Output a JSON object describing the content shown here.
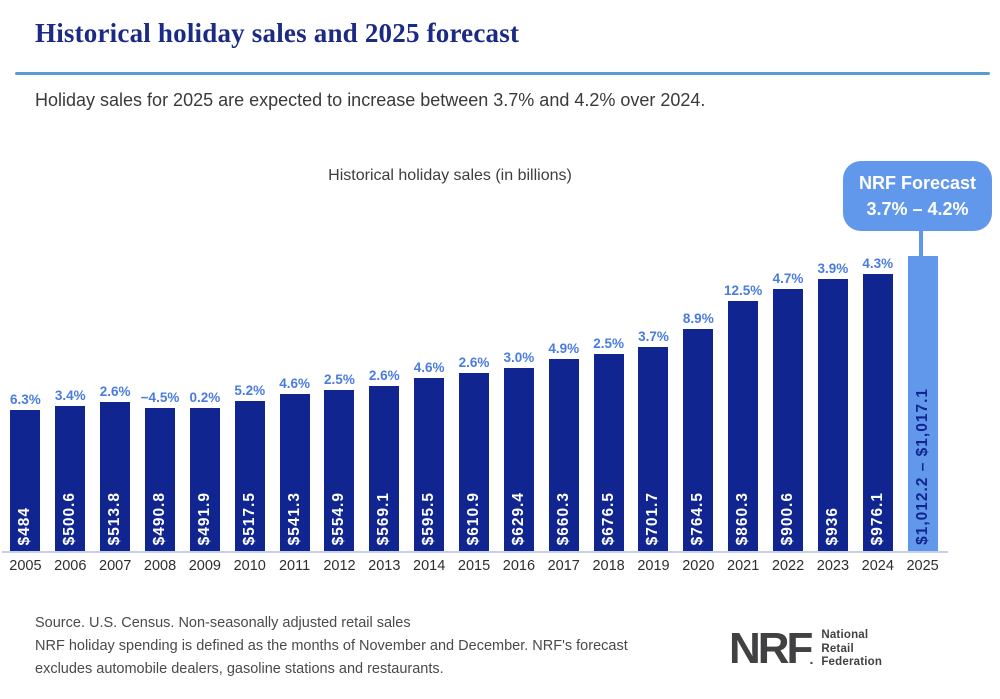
{
  "header": {
    "title": "Historical holiday sales and 2025 forecast",
    "subtitle": "Holiday sales for 2025 are expected to increase between 3.7% and 4.2% over 2024."
  },
  "chart": {
    "title": "Historical holiday sales (in billions)",
    "callout": {
      "line1": "NRF Forecast",
      "line2": "3.7% – 4.2%"
    }
  },
  "chart_data": {
    "type": "bar",
    "title": "Historical holiday sales (in billions)",
    "unit": "USD billions",
    "ylim": [
      0,
      1015
    ],
    "grid": false,
    "legend": "none",
    "categories": [
      "2005",
      "2006",
      "2007",
      "2008",
      "2009",
      "2010",
      "2011",
      "2012",
      "2013",
      "2014",
      "2015",
      "2016",
      "2017",
      "2018",
      "2019",
      "2020",
      "2021",
      "2022",
      "2023",
      "2024",
      "2025"
    ],
    "series": [
      {
        "name": "Holiday sales",
        "values": [
          484,
          500.6,
          513.8,
          490.8,
          491.9,
          517.5,
          541.3,
          554.9,
          569.1,
          595.5,
          610.9,
          629.4,
          660.3,
          676.5,
          701.7,
          764.5,
          860.3,
          900.6,
          936,
          976.1,
          1014.65
        ]
      }
    ],
    "bar_value_labels": [
      "$484",
      "$500.6",
      "$513.8",
      "$490.8",
      "$491.9",
      "$517.5",
      "$541.3",
      "$554.9",
      "$569.1",
      "$595.5",
      "$610.9",
      "$629.4",
      "$660.3",
      "$676.5",
      "$701.7",
      "$764.5",
      "$860.3",
      "$900.6",
      "$936",
      "$976.1",
      "$1,012.2 – $1,017.1"
    ],
    "pct_change_labels": [
      "6.3%",
      "3.4%",
      "2.6%",
      "−4.5%",
      "0.2%",
      "5.2%",
      "4.6%",
      "2.5%",
      "2.6%",
      "4.6%",
      "2.6%",
      "3.0%",
      "4.9%",
      "2.5%",
      "3.7%",
      "8.9%",
      "12.5%",
      "4.7%",
      "3.9%",
      "4.3%",
      ""
    ],
    "forecast_index": 20,
    "forecast_range": "$1,012.2 – $1,017.1",
    "annotation": "NRF Forecast 3.7% – 4.2%"
  },
  "footer": {
    "source_lines": [
      "Source. U.S. Census. Non-seasonally adjusted retail sales",
      "NRF holiday spending is defined as the months of November and December. NRF's forecast",
      "excludes automobile dealers, gasoline stations and restaurants."
    ],
    "logo": {
      "text": "NRF",
      "mark": ".",
      "org_lines": [
        "National",
        "Retail",
        "Federation"
      ]
    }
  },
  "colors": {
    "title_navy": "#1B2A84",
    "divider_blue": "#5B9BD5",
    "bar_navy": "#112590",
    "forecast_blue": "#6298EC",
    "pct_label_blue": "#4A7CE0",
    "axis_line": "#C5CFE8",
    "text_gray": "#4A4A4A",
    "logo_gray": "#414042"
  }
}
